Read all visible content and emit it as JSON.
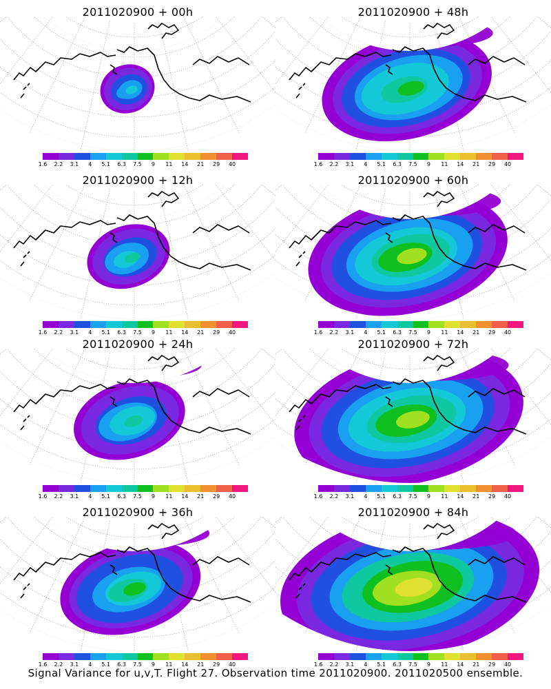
{
  "panels": [
    {
      "title": "2011020900 + 00h",
      "lead": 0
    },
    {
      "title": "2011020900 + 48h",
      "lead": 48
    },
    {
      "title": "2011020900 + 12h",
      "lead": 12
    },
    {
      "title": "2011020900 + 60h",
      "lead": 60
    },
    {
      "title": "2011020900 + 24h",
      "lead": 24
    },
    {
      "title": "2011020900 + 72h",
      "lead": 72
    },
    {
      "title": "2011020900 + 36h",
      "lead": 36
    },
    {
      "title": "2011020900 + 84h",
      "lead": 84
    }
  ],
  "colorbar": {
    "labels": [
      "1.6",
      "2.2",
      "3.1",
      "4",
      "5.1",
      "6.3",
      "7.5",
      "9",
      "11",
      "14",
      "21",
      "29",
      "40"
    ],
    "colors": [
      "#9400d3",
      "#7a28e0",
      "#2050e0",
      "#1aa0f0",
      "#14c8d8",
      "#10c8a0",
      "#10c020",
      "#a0e020",
      "#e0e030",
      "#e8c030",
      "#f09030",
      "#f06048",
      "#f01880"
    ]
  },
  "caption": "Signal Variance for u,v,T. Flight 27. Observation time 2011020900. 2011020500 ensemble."
}
